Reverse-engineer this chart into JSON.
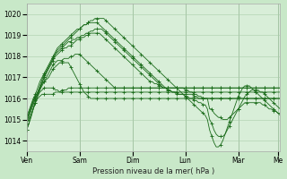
{
  "title": "",
  "xlabel": "Pression niveau de la mer( hPa )",
  "ylabel": "",
  "ylim": [
    1013.5,
    1020.5
  ],
  "yticks": [
    1014,
    1015,
    1016,
    1017,
    1018,
    1019,
    1020
  ],
  "x_day_labels": [
    "Ven",
    "Sam",
    "Dim",
    "Lun",
    "Mar",
    "Me"
  ],
  "x_day_positions": [
    0,
    24,
    48,
    72,
    96,
    114
  ],
  "bg_color": "#c8e8c8",
  "plot_bg_color": "#d8eed8",
  "grid_color": "#aaccaa",
  "line_color": "#1a6b1a",
  "total_hours": 120,
  "series": [
    [
      1014.8,
      1015.0,
      1015.2,
      1015.5,
      1015.8,
      1016.0,
      1016.1,
      1016.2,
      1016.2,
      1016.2,
      1016.2,
      1016.2,
      1016.2,
      1016.3,
      1016.3,
      1016.3,
      1016.4,
      1016.4,
      1016.4,
      1016.5,
      1016.5,
      1016.5,
      1016.5,
      1016.5,
      1016.5,
      1016.5,
      1016.5,
      1016.5,
      1016.5,
      1016.5,
      1016.5,
      1016.5,
      1016.5,
      1016.5,
      1016.5,
      1016.5,
      1016.5,
      1016.5,
      1016.5,
      1016.5,
      1016.5,
      1016.5,
      1016.5,
      1016.5,
      1016.5,
      1016.5,
      1016.5,
      1016.5,
      1016.5,
      1016.5,
      1016.5,
      1016.5,
      1016.5,
      1016.5,
      1016.5,
      1016.5,
      1016.5,
      1016.5,
      1016.5,
      1016.5,
      1016.5,
      1016.5,
      1016.5,
      1016.5,
      1016.5,
      1016.5,
      1016.5,
      1016.5,
      1016.5,
      1016.5,
      1016.5,
      1016.5,
      1016.5,
      1016.5,
      1016.5,
      1016.5,
      1016.5,
      1016.5,
      1016.5,
      1016.5,
      1016.5,
      1016.5,
      1016.5,
      1016.5,
      1016.5,
      1016.5,
      1016.5,
      1016.5,
      1016.5,
      1016.5,
      1016.5,
      1016.5,
      1016.5,
      1016.5,
      1016.5,
      1016.5,
      1016.5,
      1016.5,
      1016.5,
      1016.5,
      1016.5,
      1016.5,
      1016.5,
      1016.5,
      1016.5,
      1016.5,
      1016.5,
      1016.5,
      1016.5,
      1016.5,
      1016.5,
      1016.5,
      1016.5,
      1016.5,
      1016.5,
      1016.5
    ],
    [
      1014.5,
      1014.8,
      1015.2,
      1015.5,
      1015.9,
      1016.1,
      1016.3,
      1016.4,
      1016.5,
      1016.5,
      1016.5,
      1016.5,
      1016.5,
      1016.4,
      1016.4,
      1016.3,
      1016.3,
      1016.3,
      1016.3,
      1016.3,
      1016.3,
      1016.3,
      1016.3,
      1016.3,
      1016.3,
      1016.3,
      1016.3,
      1016.3,
      1016.3,
      1016.3,
      1016.3,
      1016.3,
      1016.3,
      1016.3,
      1016.3,
      1016.3,
      1016.3,
      1016.3,
      1016.3,
      1016.3,
      1016.3,
      1016.3,
      1016.3,
      1016.3,
      1016.3,
      1016.3,
      1016.3,
      1016.3,
      1016.3,
      1016.3,
      1016.3,
      1016.3,
      1016.3,
      1016.3,
      1016.3,
      1016.3,
      1016.3,
      1016.3,
      1016.3,
      1016.3,
      1016.3,
      1016.3,
      1016.3,
      1016.3,
      1016.3,
      1016.3,
      1016.3,
      1016.3,
      1016.3,
      1016.3,
      1016.3,
      1016.3,
      1016.3,
      1016.3,
      1016.3,
      1016.3,
      1016.3,
      1016.3,
      1016.3,
      1016.3,
      1016.3,
      1016.3,
      1016.3,
      1016.3,
      1016.3,
      1016.3,
      1016.3,
      1016.3,
      1016.3,
      1016.3,
      1016.3,
      1016.3,
      1016.3,
      1016.3,
      1016.3,
      1016.3,
      1016.3,
      1016.3,
      1016.3,
      1016.3,
      1016.3,
      1016.3,
      1016.3,
      1016.3,
      1016.3,
      1016.3,
      1016.3,
      1016.3,
      1016.3,
      1016.3,
      1016.3,
      1016.3,
      1016.3,
      1016.3,
      1016.3,
      1016.3
    ],
    [
      1014.8,
      1015.1,
      1015.4,
      1015.7,
      1016.0,
      1016.2,
      1016.4,
      1016.6,
      1016.8,
      1016.9,
      1017.0,
      1017.2,
      1017.4,
      1017.5,
      1017.6,
      1017.7,
      1017.7,
      1017.7,
      1017.7,
      1017.7,
      1017.5,
      1017.3,
      1017.1,
      1016.9,
      1016.7,
      1016.5,
      1016.3,
      1016.2,
      1016.1,
      1016.0,
      1016.0,
      1016.0,
      1016.0,
      1016.0,
      1016.0,
      1016.0,
      1016.0,
      1016.0,
      1016.0,
      1016.0,
      1016.0,
      1016.0,
      1016.0,
      1016.0,
      1016.0,
      1016.0,
      1016.0,
      1016.0,
      1016.0,
      1016.0,
      1016.0,
      1016.0,
      1016.0,
      1016.0,
      1016.0,
      1016.0,
      1016.0,
      1016.0,
      1016.0,
      1016.0,
      1016.0,
      1016.0,
      1016.0,
      1016.0,
      1016.0,
      1016.0,
      1016.0,
      1016.0,
      1016.0,
      1016.0,
      1016.0,
      1016.0,
      1016.0,
      1016.0,
      1016.0,
      1016.0,
      1016.0,
      1016.0,
      1016.0,
      1016.0,
      1016.0,
      1016.0,
      1016.0,
      1016.0,
      1016.0,
      1016.0,
      1016.0,
      1016.0,
      1016.0,
      1016.0,
      1016.0,
      1016.0,
      1016.0,
      1016.0,
      1016.0,
      1016.0,
      1016.0,
      1016.0,
      1016.0,
      1016.0,
      1016.0,
      1016.0,
      1016.0,
      1016.0,
      1016.0,
      1016.0,
      1016.0,
      1016.0,
      1016.0,
      1016.0,
      1016.0,
      1016.0,
      1016.0,
      1016.0,
      1016.0,
      1016.0
    ],
    [
      1015.0,
      1015.3,
      1015.6,
      1015.9,
      1016.1,
      1016.3,
      1016.5,
      1016.7,
      1016.8,
      1017.0,
      1017.2,
      1017.4,
      1017.6,
      1017.7,
      1017.8,
      1017.8,
      1017.8,
      1017.9,
      1017.9,
      1017.9,
      1018.0,
      1018.0,
      1018.1,
      1018.1,
      1018.1,
      1018.0,
      1017.9,
      1017.8,
      1017.7,
      1017.6,
      1017.5,
      1017.4,
      1017.3,
      1017.2,
      1017.1,
      1017.0,
      1016.9,
      1016.8,
      1016.7,
      1016.6,
      1016.5,
      1016.5,
      1016.5,
      1016.5,
      1016.5,
      1016.5,
      1016.5,
      1016.5,
      1016.5,
      1016.5,
      1016.5,
      1016.5,
      1016.5,
      1016.5,
      1016.5,
      1016.5,
      1016.5,
      1016.5,
      1016.5,
      1016.5,
      1016.5,
      1016.5,
      1016.5,
      1016.5,
      1016.5,
      1016.5,
      1016.5,
      1016.5,
      1016.5,
      1016.5,
      1016.5,
      1016.5,
      1016.5,
      1016.5,
      1016.5,
      1016.5,
      1016.5,
      1016.5,
      1016.5,
      1016.5,
      1016.5,
      1016.5,
      1016.5,
      1016.5,
      1016.5,
      1016.5,
      1016.5,
      1016.5,
      1016.5,
      1016.5,
      1016.5,
      1016.5,
      1016.5,
      1016.5,
      1016.5,
      1016.5,
      1016.5,
      1016.5,
      1016.5,
      1016.5,
      1016.5,
      1016.5,
      1016.5,
      1016.5,
      1016.5,
      1016.5,
      1016.5,
      1016.5,
      1016.5,
      1016.5,
      1016.5,
      1016.5,
      1016.5,
      1016.5,
      1016.5,
      1016.5
    ],
    [
      1015.0,
      1015.2,
      1015.5,
      1015.8,
      1016.0,
      1016.2,
      1016.5,
      1016.8,
      1017.0,
      1017.2,
      1017.4,
      1017.6,
      1017.8,
      1018.0,
      1018.1,
      1018.2,
      1018.3,
      1018.4,
      1018.4,
      1018.5,
      1018.5,
      1018.6,
      1018.7,
      1018.8,
      1018.8,
      1018.9,
      1018.9,
      1019.0,
      1019.0,
      1019.1,
      1019.1,
      1019.1,
      1019.1,
      1019.1,
      1019.0,
      1018.9,
      1018.8,
      1018.7,
      1018.6,
      1018.5,
      1018.4,
      1018.3,
      1018.2,
      1018.1,
      1018.0,
      1017.9,
      1017.8,
      1017.7,
      1017.6,
      1017.5,
      1017.4,
      1017.3,
      1017.2,
      1017.1,
      1017.0,
      1016.9,
      1016.8,
      1016.8,
      1016.7,
      1016.7,
      1016.6,
      1016.6,
      1016.5,
      1016.5,
      1016.5,
      1016.5,
      1016.5,
      1016.5,
      1016.5,
      1016.5,
      1016.5,
      1016.5,
      1016.4,
      1016.4,
      1016.3,
      1016.3,
      1016.2,
      1016.2,
      1016.1,
      1016.1,
      1016.0,
      1016.0,
      1016.0,
      1016.0,
      1016.0,
      1016.0,
      1016.0,
      1016.0,
      1016.0,
      1016.0,
      1016.0,
      1016.0,
      1016.0,
      1016.0,
      1016.0,
      1016.0,
      1016.0,
      1016.0,
      1016.0,
      1016.0,
      1016.0,
      1016.0,
      1016.0,
      1016.0,
      1016.0,
      1016.0,
      1016.0,
      1016.0,
      1016.0,
      1016.0,
      1016.0,
      1016.0,
      1016.0,
      1016.0,
      1016.0,
      1016.0
    ],
    [
      1015.1,
      1015.3,
      1015.6,
      1015.9,
      1016.1,
      1016.3,
      1016.6,
      1016.9,
      1017.1,
      1017.3,
      1017.5,
      1017.7,
      1017.9,
      1018.1,
      1018.2,
      1018.3,
      1018.4,
      1018.5,
      1018.6,
      1018.7,
      1018.7,
      1018.8,
      1018.8,
      1018.9,
      1018.9,
      1019.0,
      1019.0,
      1019.1,
      1019.1,
      1019.2,
      1019.2,
      1019.3,
      1019.3,
      1019.3,
      1019.3,
      1019.2,
      1019.1,
      1019.0,
      1018.9,
      1018.8,
      1018.7,
      1018.6,
      1018.5,
      1018.4,
      1018.3,
      1018.2,
      1018.1,
      1018.0,
      1017.9,
      1017.8,
      1017.7,
      1017.6,
      1017.5,
      1017.4,
      1017.3,
      1017.2,
      1017.1,
      1017.0,
      1016.9,
      1016.8,
      1016.7,
      1016.6,
      1016.5,
      1016.5,
      1016.4,
      1016.4,
      1016.3,
      1016.3,
      1016.3,
      1016.2,
      1016.2,
      1016.2,
      1016.2,
      1016.2,
      1016.2,
      1016.2,
      1016.1,
      1016.1,
      1016.0,
      1016.0,
      1016.0,
      1016.0,
      1016.0,
      1015.5,
      1015.5,
      1015.3,
      1015.2,
      1015.1,
      1015.1,
      1015.0,
      1015.0,
      1015.0,
      1015.1,
      1015.2,
      1015.3,
      1015.4,
      1015.5,
      1015.6,
      1015.7,
      1015.8,
      1015.8,
      1015.8,
      1015.8,
      1015.8,
      1015.8,
      1015.8,
      1015.8,
      1015.7,
      1015.7,
      1015.6,
      1015.5,
      1015.5,
      1015.4,
      1015.4,
      1015.3,
      1015.3
    ],
    [
      1015.2,
      1015.4,
      1015.7,
      1016.0,
      1016.2,
      1016.5,
      1016.8,
      1017.0,
      1017.2,
      1017.4,
      1017.6,
      1017.8,
      1018.0,
      1018.2,
      1018.4,
      1018.5,
      1018.6,
      1018.7,
      1018.8,
      1018.9,
      1019.0,
      1019.1,
      1019.2,
      1019.3,
      1019.3,
      1019.4,
      1019.5,
      1019.5,
      1019.6,
      1019.6,
      1019.6,
      1019.6,
      1019.6,
      1019.5,
      1019.4,
      1019.3,
      1019.2,
      1019.1,
      1019.0,
      1018.9,
      1018.8,
      1018.7,
      1018.6,
      1018.5,
      1018.4,
      1018.3,
      1018.2,
      1018.1,
      1018.0,
      1017.9,
      1017.8,
      1017.7,
      1017.6,
      1017.5,
      1017.4,
      1017.3,
      1017.2,
      1017.1,
      1017.0,
      1016.9,
      1016.8,
      1016.7,
      1016.6,
      1016.5,
      1016.4,
      1016.4,
      1016.3,
      1016.3,
      1016.2,
      1016.2,
      1016.2,
      1016.2,
      1016.1,
      1016.1,
      1016.0,
      1016.0,
      1015.9,
      1015.9,
      1015.8,
      1015.8,
      1015.7,
      1015.7,
      1015.5,
      1015.0,
      1014.8,
      1014.5,
      1014.3,
      1014.2,
      1014.2,
      1014.2,
      1014.3,
      1014.5,
      1014.7,
      1014.9,
      1015.1,
      1015.3,
      1015.5,
      1015.7,
      1015.9,
      1016.1,
      1016.2,
      1016.3,
      1016.4,
      1016.4,
      1016.4,
      1016.4,
      1016.3,
      1016.3,
      1016.2,
      1016.1,
      1016.0,
      1015.9,
      1015.8,
      1015.7,
      1015.6,
      1015.5
    ],
    [
      1014.5,
      1014.8,
      1015.1,
      1015.5,
      1015.8,
      1016.1,
      1016.4,
      1016.7,
      1017.0,
      1017.3,
      1017.5,
      1017.7,
      1017.9,
      1018.1,
      1018.3,
      1018.4,
      1018.5,
      1018.6,
      1018.7,
      1018.8,
      1018.9,
      1019.0,
      1019.1,
      1019.2,
      1019.3,
      1019.4,
      1019.5,
      1019.5,
      1019.6,
      1019.7,
      1019.7,
      1019.8,
      1019.8,
      1019.8,
      1019.8,
      1019.8,
      1019.7,
      1019.6,
      1019.5,
      1019.4,
      1019.3,
      1019.2,
      1019.1,
      1019.0,
      1018.9,
      1018.8,
      1018.7,
      1018.6,
      1018.5,
      1018.4,
      1018.3,
      1018.2,
      1018.1,
      1018.0,
      1017.9,
      1017.8,
      1017.7,
      1017.6,
      1017.5,
      1017.4,
      1017.3,
      1017.2,
      1017.1,
      1017.0,
      1016.9,
      1016.8,
      1016.7,
      1016.6,
      1016.5,
      1016.4,
      1016.3,
      1016.2,
      1016.1,
      1016.0,
      1015.9,
      1015.8,
      1015.7,
      1015.6,
      1015.5,
      1015.4,
      1015.3,
      1015.2,
      1015.0,
      1014.5,
      1014.2,
      1013.9,
      1013.7,
      1013.7,
      1013.8,
      1014.0,
      1014.3,
      1014.6,
      1014.9,
      1015.2,
      1015.5,
      1015.8,
      1016.1,
      1016.3,
      1016.5,
      1016.6,
      1016.6,
      1016.6,
      1016.5,
      1016.4,
      1016.3,
      1016.2,
      1016.1,
      1016.0,
      1015.9,
      1015.8,
      1015.7,
      1015.6,
      1015.5,
      1015.4,
      1015.3,
      1015.2
    ]
  ],
  "n_points": 116
}
